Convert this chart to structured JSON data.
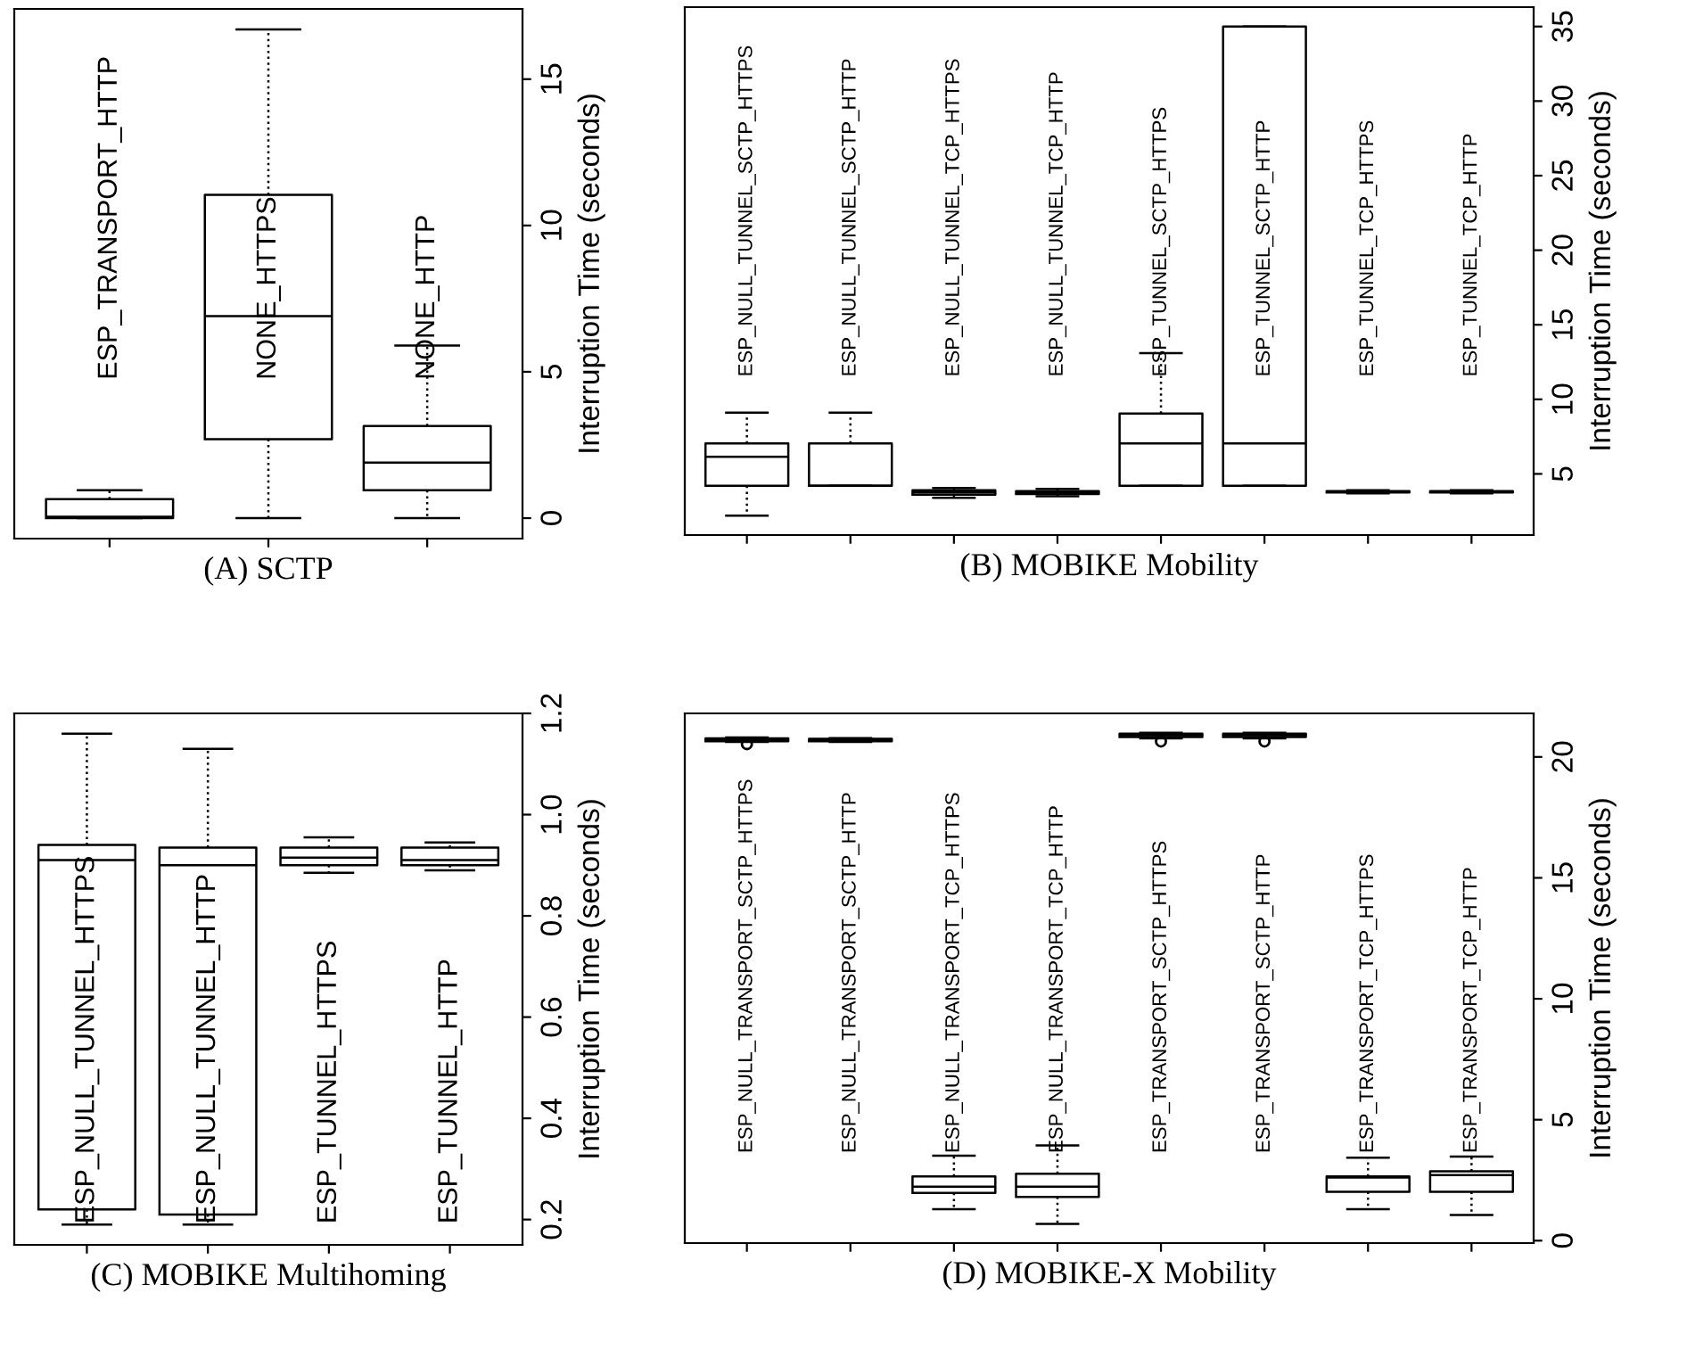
{
  "chart_data": [
    {
      "type": "box",
      "title": "(A) SCTP",
      "ylabel": "Interruption Time (seconds)",
      "categories": [
        "ESP_TRANSPORT_HTTP",
        "NONE_HTTPS",
        "NONE_HTTP"
      ],
      "ylim": [
        -0.7,
        17.4
      ],
      "yticks": [
        0,
        5,
        10,
        15
      ],
      "tick_labels": "y",
      "grid": false,
      "boxes": [
        {
          "low": 0,
          "q1": 0,
          "median": 0.05,
          "q3": 0.65,
          "high": 0.95
        },
        {
          "low": 0,
          "q1": 2.7,
          "median": 6.9,
          "q3": 11.05,
          "high": 16.7
        },
        {
          "low": 0,
          "q1": 0.95,
          "median": 1.9,
          "q3": 3.15,
          "high": 5.9
        }
      ]
    },
    {
      "type": "box",
      "title": "(B) MOBIKE Mobility",
      "ylabel": "Interruption Time (seconds)",
      "categories": [
        "ESP_NULL_TUNNEL_SCTP_HTTPS",
        "ESP_NULL_TUNNEL_SCTP_HTTP",
        "ESP_NULL_TUNNEL_TCP_HTTPS",
        "ESP_NULL_TUNNEL_TCP_HTTP",
        "ESP_TUNNEL_SCTP_HTTPS",
        "ESP_TUNNEL_SCTP_HTTP",
        "ESP_TUNNEL_TCP_HTTPS",
        "ESP_TUNNEL_TCP_HTTP"
      ],
      "ylim": [
        0.9,
        36.3
      ],
      "yticks": [
        5,
        10,
        15,
        20,
        25,
        30,
        35
      ],
      "tick_labels": "y",
      "grid": false,
      "boxes": [
        {
          "low": 2.2,
          "q1": 4.2,
          "median": 6.15,
          "q3": 7.05,
          "high": 9.1
        },
        {
          "low": 4.2,
          "q1": 4.2,
          "median": 4.2,
          "q3": 7.05,
          "high": 9.1
        },
        {
          "low": 3.4,
          "q1": 3.6,
          "median": 3.75,
          "q3": 3.9,
          "high": 4.05
        },
        {
          "low": 3.5,
          "q1": 3.65,
          "median": 3.75,
          "q3": 3.85,
          "high": 4.0
        },
        {
          "low": 4.2,
          "q1": 4.2,
          "median": 7.05,
          "q3": 9.05,
          "high": 13.1
        },
        {
          "low": 4.2,
          "q1": 4.2,
          "median": 7.05,
          "q3": 35,
          "high": 35
        },
        {
          "low": 3.7,
          "q1": 3.75,
          "median": 3.8,
          "q3": 3.85,
          "high": 3.9
        },
        {
          "low": 3.7,
          "q1": 3.75,
          "median": 3.8,
          "q3": 3.85,
          "high": 3.9
        }
      ]
    },
    {
      "type": "box",
      "title": "(C) MOBIKE Multihoming",
      "ylabel": "Interruption Time (seconds)",
      "categories": [
        "ESP_NULL_TUNNEL_HTTPS",
        "ESP_NULL_TUNNEL_HTTP",
        "ESP_TUNNEL_HTTPS",
        "ESP_TUNNEL_HTTP"
      ],
      "ylim": [
        0.15,
        1.2
      ],
      "yticks": [
        {
          "value": 0.2,
          "label": "0.2"
        },
        {
          "value": 0.4,
          "label": "0.4"
        },
        {
          "value": 0.6,
          "label": "0.6"
        },
        {
          "value": 0.8,
          "label": "0.8"
        },
        {
          "value": 1.0,
          "label": "1.0"
        },
        {
          "value": 1.2,
          "label": "1.2"
        }
      ],
      "tick_labels": "y",
      "grid": false,
      "boxes": [
        {
          "low": 0.19,
          "q1": 0.22,
          "median": 0.91,
          "q3": 0.94,
          "high": 1.16
        },
        {
          "low": 0.19,
          "q1": 0.21,
          "median": 0.9,
          "q3": 0.935,
          "high": 1.13
        },
        {
          "low": 0.885,
          "q1": 0.9,
          "median": 0.915,
          "q3": 0.935,
          "high": 0.955
        },
        {
          "low": 0.89,
          "q1": 0.9,
          "median": 0.91,
          "q3": 0.935,
          "high": 0.945
        }
      ]
    },
    {
      "type": "box",
      "title": "(D) MOBIKE-X Mobility",
      "ylabel": "Interruption Time (seconds)",
      "categories": [
        "ESP_NULL_TRANSPORT_SCTP_HTTPS",
        "ESP_NULL_TRANSPORT_SCTP_HTTP",
        "ESP_NULL_TRANSPORT_TCP_HTTPS",
        "ESP_NULL_TRANSPORT_TCP_HTTP",
        "ESP_TRANSPORT_SCTP_HTTPS",
        "ESP_TRANSPORT_SCTP_HTTP",
        "ESP_TRANSPORT_TCP_HTTPS",
        "ESP_TRANSPORT_TCP_HTTP"
      ],
      "ylim": [
        -0.1,
        21.8
      ],
      "yticks": [
        0,
        5,
        10,
        15,
        20
      ],
      "tick_labels": "y",
      "grid": false,
      "boxes": [
        {
          "low": 20.62,
          "q1": 20.65,
          "median": 20.7,
          "q3": 20.77,
          "high": 20.8,
          "outliers": [
            20.53
          ]
        },
        {
          "low": 20.62,
          "q1": 20.65,
          "median": 20.7,
          "q3": 20.75,
          "high": 20.78
        },
        {
          "low": 1.3,
          "q1": 1.97,
          "median": 2.23,
          "q3": 2.66,
          "high": 3.51
        },
        {
          "low": 0.69,
          "q1": 1.81,
          "median": 2.23,
          "q3": 2.77,
          "high": 3.94
        },
        {
          "low": 20.77,
          "q1": 20.82,
          "median": 20.9,
          "q3": 20.96,
          "high": 21.0,
          "outliers": [
            20.64
          ]
        },
        {
          "low": 20.77,
          "q1": 20.82,
          "median": 20.9,
          "q3": 20.96,
          "high": 21.0,
          "outliers": [
            20.64
          ]
        },
        {
          "low": 1.3,
          "q1": 2.02,
          "median": 2.61,
          "q3": 2.66,
          "high": 3.43
        },
        {
          "low": 1.06,
          "q1": 2.02,
          "median": 2.71,
          "q3": 2.87,
          "high": 3.48
        }
      ]
    }
  ]
}
